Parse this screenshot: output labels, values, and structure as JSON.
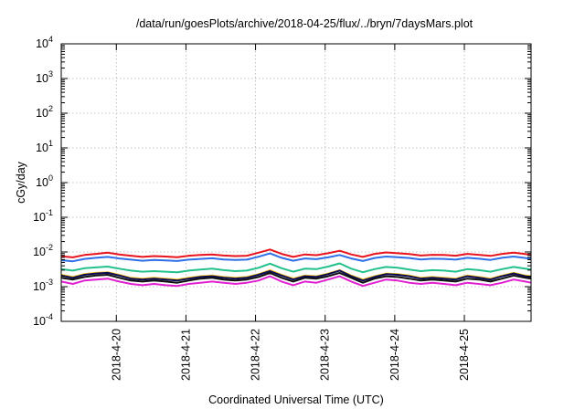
{
  "chart_data": {
    "type": "line",
    "title": "/data/run/goesPlots/archive/2018-04-25/flux/../bryn/7daysMars.plot",
    "xlabel": "Coordinated Universal Time (UTC)",
    "ylabel": "cGy/day",
    "yscale": "log",
    "ylim": [
      0.0001,
      10000
    ],
    "xlim": [
      "2018-04-19T05:00",
      "2018-04-25T23:00"
    ],
    "grid": true,
    "legend": "none",
    "y_ticks": [
      {
        "base": "10",
        "exp": "-4",
        "value": 0.0001
      },
      {
        "base": "10",
        "exp": "-3",
        "value": 0.001
      },
      {
        "base": "10",
        "exp": "-2",
        "value": 0.01
      },
      {
        "base": "10",
        "exp": "-1",
        "value": 0.1
      },
      {
        "base": "10",
        "exp": "0",
        "value": 1
      },
      {
        "base": "10",
        "exp": "1",
        "value": 10
      },
      {
        "base": "10",
        "exp": "2",
        "value": 100
      },
      {
        "base": "10",
        "exp": "3",
        "value": 1000
      },
      {
        "base": "10",
        "exp": "4",
        "value": 10000
      }
    ],
    "x_ticks": [
      {
        "label": "2018-4-20",
        "time": "2018-04-20T00:00"
      },
      {
        "label": "2018-4-21",
        "time": "2018-04-21T00:00"
      },
      {
        "label": "2018-4-22",
        "time": "2018-04-22T00:00"
      },
      {
        "label": "2018-4-23",
        "time": "2018-04-23T00:00"
      },
      {
        "label": "2018-4-24",
        "time": "2018-04-24T00:00"
      },
      {
        "label": "2018-4-25",
        "time": "2018-04-25T00:00"
      }
    ],
    "x": [
      "2018-04-19T05:00",
      "2018-04-19T09:00",
      "2018-04-19T13:00",
      "2018-04-19T17:00",
      "2018-04-19T21:00",
      "2018-04-20T01:00",
      "2018-04-20T05:00",
      "2018-04-20T09:00",
      "2018-04-20T13:00",
      "2018-04-20T17:00",
      "2018-04-20T21:00",
      "2018-04-21T01:00",
      "2018-04-21T05:00",
      "2018-04-21T09:00",
      "2018-04-21T13:00",
      "2018-04-21T17:00",
      "2018-04-21T21:00",
      "2018-04-22T01:00",
      "2018-04-22T05:00",
      "2018-04-22T09:00",
      "2018-04-22T13:00",
      "2018-04-22T17:00",
      "2018-04-22T21:00",
      "2018-04-23T01:00",
      "2018-04-23T05:00",
      "2018-04-23T09:00",
      "2018-04-23T13:00",
      "2018-04-23T17:00",
      "2018-04-23T21:00",
      "2018-04-24T01:00",
      "2018-04-24T05:00",
      "2018-04-24T09:00",
      "2018-04-24T13:00",
      "2018-04-24T17:00",
      "2018-04-24T21:00",
      "2018-04-25T01:00",
      "2018-04-25T05:00",
      "2018-04-25T09:00",
      "2018-04-25T13:00",
      "2018-04-25T17:00",
      "2018-04-25T21:00",
      "2018-04-25T23:00"
    ],
    "series": [
      {
        "color": "#e8141e",
        "values": [
          0.0075,
          0.007,
          0.0082,
          0.0088,
          0.0095,
          0.0085,
          0.0078,
          0.0072,
          0.0076,
          0.0074,
          0.0071,
          0.0078,
          0.0082,
          0.0085,
          0.0079,
          0.0076,
          0.0078,
          0.0095,
          0.0118,
          0.0088,
          0.0072,
          0.0085,
          0.0081,
          0.0092,
          0.0108,
          0.0085,
          0.0072,
          0.0088,
          0.0097,
          0.0092,
          0.0087,
          0.0079,
          0.0083,
          0.0082,
          0.0078,
          0.0088,
          0.0083,
          0.0077,
          0.0088,
          0.0096,
          0.0087,
          0.0082
        ]
      },
      {
        "color": "#2f6fe8",
        "values": [
          0.0058,
          0.0054,
          0.0063,
          0.0068,
          0.0072,
          0.0065,
          0.006,
          0.0056,
          0.0059,
          0.0057,
          0.0055,
          0.006,
          0.0063,
          0.0066,
          0.0061,
          0.0059,
          0.006,
          0.0073,
          0.0091,
          0.0068,
          0.0056,
          0.0065,
          0.0062,
          0.007,
          0.0082,
          0.0065,
          0.0055,
          0.0067,
          0.0074,
          0.0071,
          0.0067,
          0.0061,
          0.0064,
          0.0063,
          0.006,
          0.0068,
          0.0064,
          0.0059,
          0.0068,
          0.0074,
          0.0067,
          0.0063
        ]
      },
      {
        "color": "#22c08a",
        "values": [
          0.0032,
          0.0029,
          0.0034,
          0.0036,
          0.0038,
          0.0033,
          0.0029,
          0.0027,
          0.0028,
          0.0027,
          0.0026,
          0.0029,
          0.0031,
          0.0033,
          0.003,
          0.0028,
          0.0029,
          0.0035,
          0.0046,
          0.0034,
          0.0027,
          0.0033,
          0.0032,
          0.0038,
          0.0047,
          0.0033,
          0.0026,
          0.0032,
          0.0037,
          0.0035,
          0.0031,
          0.0028,
          0.003,
          0.0029,
          0.0027,
          0.0032,
          0.003,
          0.0027,
          0.0032,
          0.0037,
          0.0033,
          0.0031
        ]
      },
      {
        "color": "#f0c020",
        "values": [
          0.0022,
          0.0019,
          0.0023,
          0.0025,
          0.0026,
          0.0022,
          0.0018,
          0.0017,
          0.0018,
          0.0017,
          0.0016,
          0.0018,
          0.002,
          0.0021,
          0.0019,
          0.0018,
          0.0019,
          0.0023,
          0.003,
          0.0022,
          0.0017,
          0.0021,
          0.002,
          0.0024,
          0.003,
          0.0021,
          0.0016,
          0.002,
          0.0024,
          0.0023,
          0.0021,
          0.0018,
          0.0019,
          0.0018,
          0.0017,
          0.0021,
          0.0019,
          0.0017,
          0.0021,
          0.0025,
          0.0021,
          0.002
        ]
      },
      {
        "color": "#0a0a55",
        "values": [
          0.0021,
          0.0018,
          0.0022,
          0.0024,
          0.0025,
          0.0021,
          0.0017,
          0.0016,
          0.0017,
          0.0016,
          0.0015,
          0.0017,
          0.0019,
          0.002,
          0.0018,
          0.0017,
          0.0018,
          0.0022,
          0.0028,
          0.0021,
          0.0016,
          0.002,
          0.0019,
          0.0023,
          0.0029,
          0.002,
          0.0015,
          0.0019,
          0.0023,
          0.0022,
          0.002,
          0.0017,
          0.0018,
          0.0017,
          0.0016,
          0.002,
          0.0018,
          0.0016,
          0.002,
          0.0024,
          0.002,
          0.0019
        ]
      },
      {
        "color": "#111111",
        "values": [
          0.0018,
          0.0016,
          0.0019,
          0.0021,
          0.0022,
          0.0018,
          0.0015,
          0.0014,
          0.0015,
          0.0014,
          0.0013,
          0.0015,
          0.0017,
          0.0018,
          0.0016,
          0.0015,
          0.0016,
          0.0019,
          0.0025,
          0.0018,
          0.0014,
          0.0018,
          0.0017,
          0.002,
          0.0025,
          0.0018,
          0.0013,
          0.0017,
          0.002,
          0.0019,
          0.0017,
          0.0015,
          0.0016,
          0.0015,
          0.0014,
          0.0017,
          0.0016,
          0.0014,
          0.0017,
          0.0021,
          0.0018,
          0.0017
        ]
      },
      {
        "color": "#e020d0",
        "values": [
          0.0014,
          0.0012,
          0.0015,
          0.0016,
          0.0017,
          0.0014,
          0.0012,
          0.0011,
          0.0012,
          0.0011,
          0.00105,
          0.0012,
          0.0013,
          0.0014,
          0.0013,
          0.0012,
          0.0013,
          0.0015,
          0.002,
          0.0014,
          0.0011,
          0.0014,
          0.0013,
          0.0016,
          0.002,
          0.0014,
          0.00105,
          0.0013,
          0.0016,
          0.0015,
          0.0013,
          0.0012,
          0.0013,
          0.0012,
          0.0011,
          0.0013,
          0.0012,
          0.0011,
          0.0013,
          0.0016,
          0.0014,
          0.0013
        ]
      }
    ]
  }
}
